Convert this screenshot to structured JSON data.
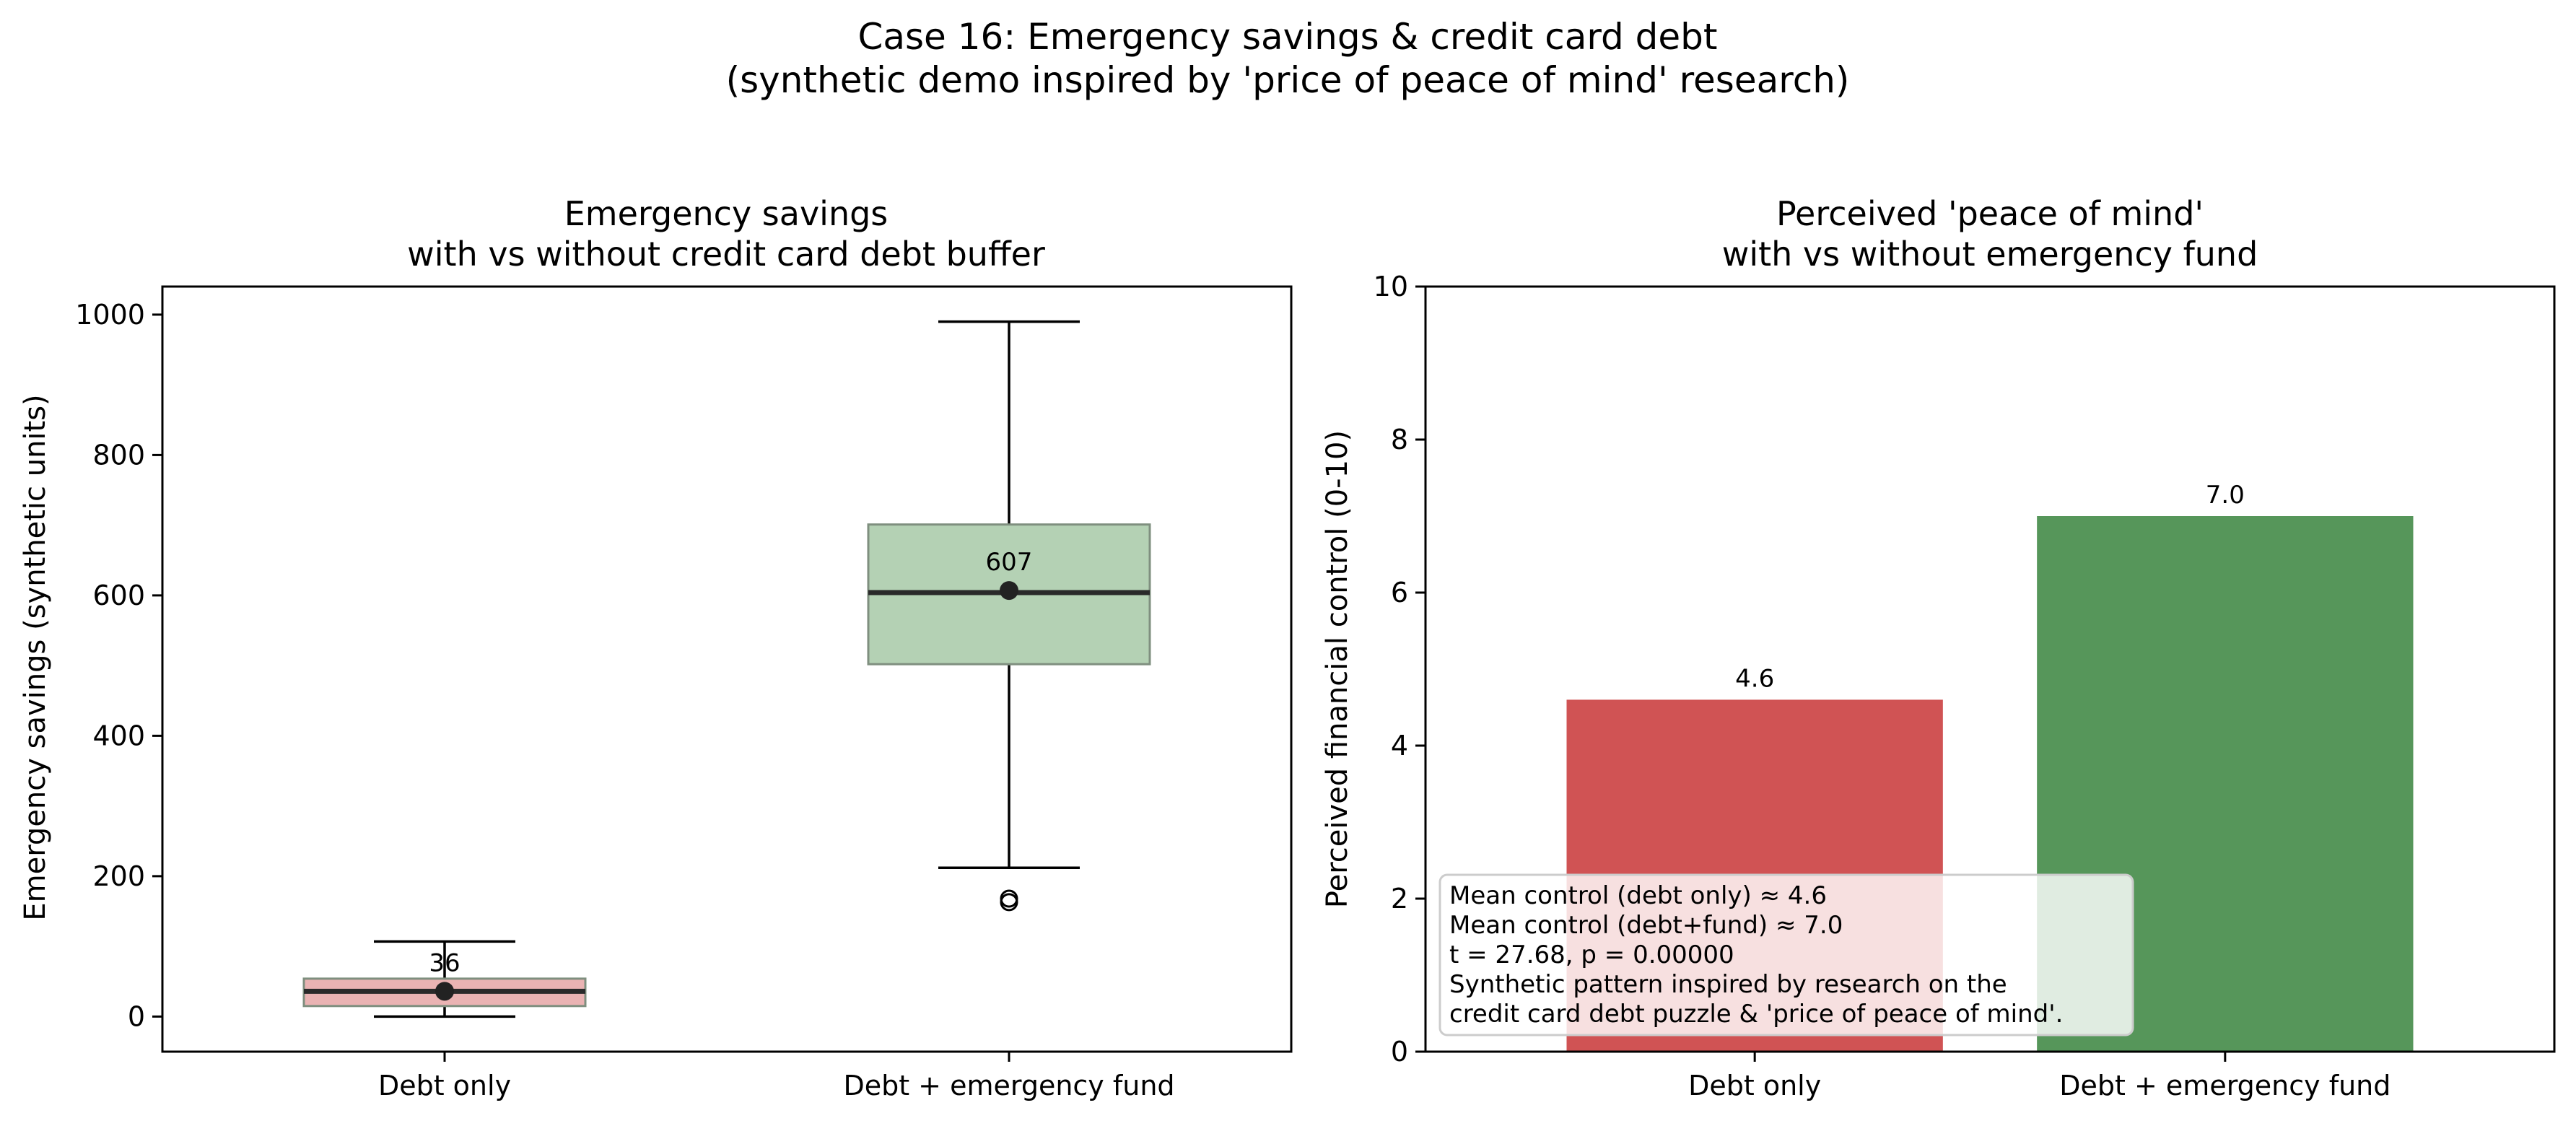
{
  "figure": {
    "title_lines": [
      "Case 16: Emergency savings & credit card debt",
      "(synthetic demo inspired by 'price of peace of mind' research)"
    ]
  },
  "chart_data": [
    {
      "type": "box",
      "title_lines": [
        "Emergency savings",
        "with vs without credit card debt buffer"
      ],
      "xlabel": "",
      "ylabel": "Emergency savings (synthetic units)",
      "categories": [
        "Debt only",
        "Debt + emergency fund"
      ],
      "ylim": [
        -50,
        1040
      ],
      "yticks": [
        0,
        200,
        400,
        600,
        800,
        1000
      ],
      "grid": false,
      "boxes": [
        {
          "category": "Debt only",
          "whisker_low": 0,
          "q1": 15,
          "median": 36,
          "q3": 54,
          "whisker_high": 107,
          "mean": 36,
          "mean_label": "36",
          "outliers": [],
          "color": "#eab3b3"
        },
        {
          "category": "Debt + emergency fund",
          "whisker_low": 212,
          "q1": 502,
          "median": 604,
          "q3": 701,
          "whisker_high": 990,
          "mean": 607,
          "mean_label": "607",
          "outliers": [
            163,
            168
          ],
          "color": "#b4d1b4"
        }
      ]
    },
    {
      "type": "bar",
      "title_lines": [
        "Perceived 'peace of mind'",
        "with vs without emergency fund"
      ],
      "xlabel": "",
      "ylabel": "Perceived financial control (0-10)",
      "categories": [
        "Debt only",
        "Debt + emergency fund"
      ],
      "values": [
        4.6,
        7.0
      ],
      "value_labels": [
        "4.6",
        "7.0"
      ],
      "colors": [
        "#d05354",
        "#56965a"
      ],
      "ylim": [
        0,
        10
      ],
      "yticks": [
        0,
        2,
        4,
        6,
        8,
        10
      ],
      "grid": false,
      "annotation_lines": [
        "Mean control (debt only) ≈ 4.6",
        "Mean control (debt+fund) ≈ 7.0",
        "t = 27.68, p = 0.00000",
        "Synthetic pattern inspired by research on the",
        "credit card debt puzzle & 'price of peace of mind'."
      ],
      "annotation_placement": "lower-left"
    }
  ]
}
